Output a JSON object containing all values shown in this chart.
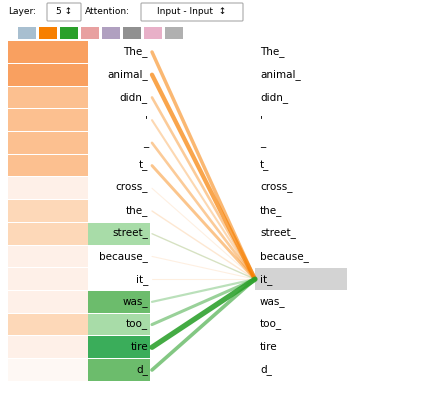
{
  "words": [
    "The_",
    "animal_",
    "didn_",
    "'",
    "_",
    "t_",
    "cross_",
    "the_",
    "street_",
    "because_",
    "it_",
    "was_",
    "too_",
    "tire",
    "d_"
  ],
  "left_box_colors": [
    "#f9a060",
    "#f9a060",
    "#fcc090",
    "#fcc090",
    "#fcc090",
    "#fcc090",
    "#fef0e8",
    "#fdd8b8",
    "#fdd8b8",
    "#fef0e8",
    "#fef0e8",
    "#fef0e8",
    "#fdd8b8",
    "#fef0e8",
    "#fef8f4"
  ],
  "left_word_bg": [
    null,
    null,
    null,
    null,
    null,
    null,
    null,
    null,
    "#a8dca8",
    null,
    null,
    "#6cbc6c",
    "#a8dca8",
    "#3aad5a",
    "#6cbc6c"
  ],
  "right_word_bg": [
    null,
    null,
    null,
    null,
    null,
    null,
    null,
    null,
    null,
    null,
    "#d3d3d3",
    null,
    null,
    null,
    null
  ],
  "attention_orange": {
    "from_indices": [
      0,
      1,
      2,
      3,
      4,
      5,
      6,
      7,
      8,
      9,
      10
    ],
    "alphas": [
      0.55,
      0.7,
      0.4,
      0.3,
      0.4,
      0.45,
      0.12,
      0.18,
      0.12,
      0.12,
      0.12
    ]
  },
  "attention_green": {
    "from_indices": [
      8,
      11,
      12,
      13,
      14
    ],
    "alphas": [
      0.18,
      0.32,
      0.48,
      0.88,
      0.58
    ]
  },
  "target_index": 10,
  "swatches": [
    "#a8bfd0",
    "#f77f00",
    "#2aa02a",
    "#e8a0a0",
    "#b0a0c0",
    "#909090",
    "#e8b0c8",
    "#b0b0b0"
  ],
  "bg_color": "#ffffff"
}
